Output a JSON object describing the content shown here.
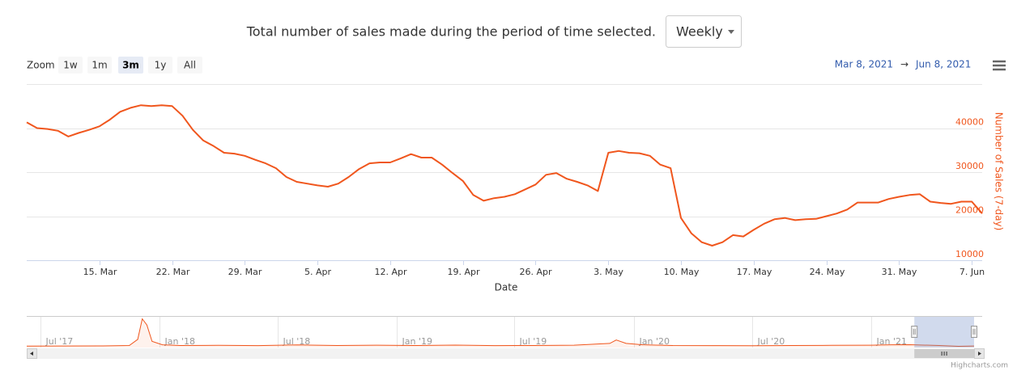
{
  "header": {
    "text": "Total number of sales made during the period of time selected.",
    "select": "Weekly"
  },
  "zoom": {
    "label": "Zoom",
    "buttons": [
      "1w",
      "1m",
      "3m",
      "1y",
      "All"
    ],
    "selected": 2
  },
  "range": {
    "from": "Mar 8, 2021",
    "arrow": "→",
    "to": "Jun 8, 2021"
  },
  "credits": "Highcharts.com",
  "chart_data": {
    "type": "line",
    "x_label": "Date",
    "y_label": "Number of Sales (7-day)",
    "grid": true,
    "xlim": [
      "2021-03-08",
      "2021-06-08"
    ],
    "ylim": [
      10000,
      50000
    ],
    "yticks": [
      10000,
      20000,
      30000,
      40000
    ],
    "ygrid": [
      10000,
      20000,
      30000,
      40000,
      50000
    ],
    "xticks": [
      {
        "value": "2021-03-15",
        "label": "15. Mar"
      },
      {
        "value": "2021-03-22",
        "label": "22. Mar"
      },
      {
        "value": "2021-03-29",
        "label": "29. Mar"
      },
      {
        "value": "2021-04-05",
        "label": "5. Apr"
      },
      {
        "value": "2021-04-12",
        "label": "12. Apr"
      },
      {
        "value": "2021-04-19",
        "label": "19. Apr"
      },
      {
        "value": "2021-04-26",
        "label": "26. Apr"
      },
      {
        "value": "2021-05-03",
        "label": "3. May"
      },
      {
        "value": "2021-05-10",
        "label": "10. May"
      },
      {
        "value": "2021-05-17",
        "label": "17. May"
      },
      {
        "value": "2021-05-24",
        "label": "24. May"
      },
      {
        "value": "2021-05-31",
        "label": "31. May"
      },
      {
        "value": "2021-06-07",
        "label": "7. Jun"
      }
    ],
    "series": [
      {
        "name": "Number of Sales (7-day)",
        "color": "#f0561d",
        "x": [
          "2021-03-08",
          "2021-03-09",
          "2021-03-10",
          "2021-03-11",
          "2021-03-12",
          "2021-03-13",
          "2021-03-14",
          "2021-03-15",
          "2021-03-16",
          "2021-03-17",
          "2021-03-18",
          "2021-03-19",
          "2021-03-20",
          "2021-03-21",
          "2021-03-22",
          "2021-03-23",
          "2021-03-24",
          "2021-03-25",
          "2021-03-26",
          "2021-03-27",
          "2021-03-28",
          "2021-03-29",
          "2021-03-30",
          "2021-03-31",
          "2021-04-01",
          "2021-04-02",
          "2021-04-03",
          "2021-04-04",
          "2021-04-05",
          "2021-04-06",
          "2021-04-07",
          "2021-04-08",
          "2021-04-09",
          "2021-04-10",
          "2021-04-11",
          "2021-04-12",
          "2021-04-13",
          "2021-04-14",
          "2021-04-15",
          "2021-04-16",
          "2021-04-17",
          "2021-04-18",
          "2021-04-19",
          "2021-04-20",
          "2021-04-21",
          "2021-04-22",
          "2021-04-23",
          "2021-04-24",
          "2021-04-25",
          "2021-04-26",
          "2021-04-27",
          "2021-04-28",
          "2021-04-29",
          "2021-04-30",
          "2021-05-01",
          "2021-05-02",
          "2021-05-03",
          "2021-05-04",
          "2021-05-05",
          "2021-05-06",
          "2021-05-07",
          "2021-05-08",
          "2021-05-09",
          "2021-05-10",
          "2021-05-11",
          "2021-05-12",
          "2021-05-13",
          "2021-05-14",
          "2021-05-15",
          "2021-05-16",
          "2021-05-17",
          "2021-05-18",
          "2021-05-19",
          "2021-05-20",
          "2021-05-21",
          "2021-05-22",
          "2021-05-23",
          "2021-05-24",
          "2021-05-25",
          "2021-05-26",
          "2021-05-27",
          "2021-05-28",
          "2021-05-29",
          "2021-05-30",
          "2021-05-31",
          "2021-06-01",
          "2021-06-02",
          "2021-06-03",
          "2021-06-04",
          "2021-06-05",
          "2021-06-06",
          "2021-06-07",
          "2021-06-08"
        ],
        "values": [
          41300,
          40000,
          39800,
          39400,
          38100,
          38900,
          39600,
          40400,
          41900,
          43700,
          44600,
          45200,
          45000,
          45200,
          45000,
          42800,
          39600,
          37200,
          35900,
          34400,
          34200,
          33700,
          32800,
          32000,
          30900,
          28900,
          27800,
          27400,
          27000,
          26700,
          27400,
          28900,
          30700,
          32000,
          32200,
          32200,
          33100,
          34100,
          33300,
          33300,
          31700,
          29800,
          28000,
          24800,
          23500,
          24100,
          24400,
          25000,
          26100,
          27200,
          29400,
          29800,
          28500,
          27800,
          27000,
          25700,
          34400,
          34800,
          34400,
          34300,
          33700,
          31700,
          30900,
          19600,
          16100,
          14100,
          13300,
          14100,
          15700,
          15400,
          16900,
          18300,
          19300,
          19600,
          19100,
          19300,
          19400,
          20000,
          20600,
          21500,
          23100,
          23100,
          23100,
          23900,
          24400,
          24800,
          25000,
          23300,
          23000,
          22800,
          23300,
          23300,
          20600
        ]
      }
    ],
    "navigator": {
      "color": "#f0561d",
      "xlim": [
        "2017-06-10",
        "2021-06-08"
      ],
      "ylim": [
        0,
        450000
      ],
      "xticks": [
        {
          "value": "2017-07-01",
          "label": "Jul '17"
        },
        {
          "value": "2018-01-01",
          "label": "Jan '18"
        },
        {
          "value": "2018-07-01",
          "label": "Jul '18"
        },
        {
          "value": "2019-01-01",
          "label": "Jan '19"
        },
        {
          "value": "2019-07-01",
          "label": "Jul '19"
        },
        {
          "value": "2020-01-01",
          "label": "Jan '20"
        },
        {
          "value": "2020-07-01",
          "label": "Jul '20"
        },
        {
          "value": "2021-01-01",
          "label": "Jan '21"
        }
      ],
      "x": [
        "2017-06-10",
        "2017-08-01",
        "2017-10-01",
        "2017-11-15",
        "2017-11-28",
        "2017-12-05",
        "2017-12-12",
        "2017-12-20",
        "2018-01-05",
        "2018-02-01",
        "2018-04-01",
        "2018-06-01",
        "2018-08-01",
        "2018-10-01",
        "2018-12-01",
        "2019-02-01",
        "2019-04-01",
        "2019-06-01",
        "2019-08-01",
        "2019-10-01",
        "2019-11-25",
        "2019-12-05",
        "2019-12-20",
        "2020-01-15",
        "2020-03-01",
        "2020-05-01",
        "2020-07-01",
        "2020-09-01",
        "2020-11-01",
        "2021-01-01",
        "2021-02-01",
        "2021-03-01",
        "2021-04-15",
        "2021-05-15",
        "2021-06-08"
      ],
      "values": [
        20000,
        22000,
        24000,
        30000,
        120000,
        420000,
        330000,
        90000,
        40000,
        30000,
        32000,
        28000,
        38000,
        30000,
        34000,
        30000,
        36000,
        28000,
        30000,
        34000,
        60000,
        110000,
        60000,
        40000,
        30000,
        28000,
        26000,
        30000,
        32000,
        34000,
        40000,
        42000,
        30000,
        18000,
        22000
      ]
    }
  }
}
